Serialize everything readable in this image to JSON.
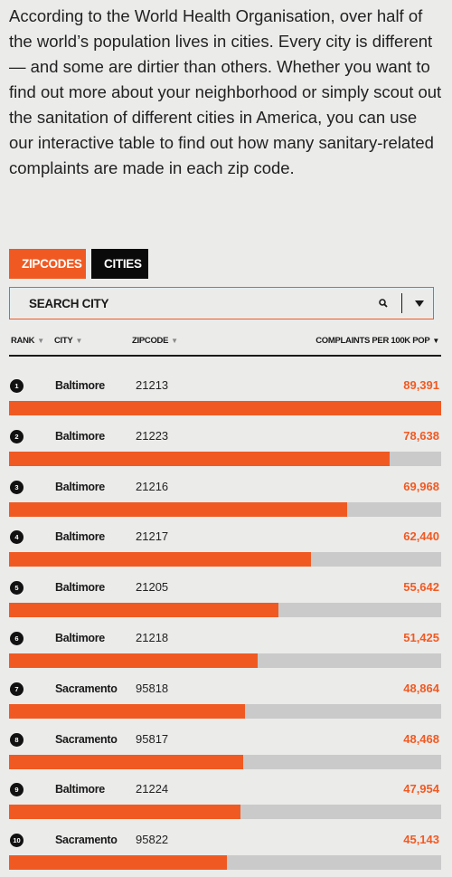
{
  "intro": {
    "text": "According to the World Health Organisation, over half of the world’s population lives in cities. Every city is different — and some are dirtier than others. Whether you want to find out more about your neighborhood or simply scout out the sanitation of different cities in America, you can use our interactive table to find out how many sanitary-related complaints are made in each zip code."
  },
  "tabs": [
    {
      "label": "ZIPCODES",
      "active": true
    },
    {
      "label": "CITIES",
      "active": false
    }
  ],
  "search": {
    "placeholder": "SEARCH CITY",
    "value": ""
  },
  "columns": {
    "rank": "RANK",
    "city": "CITY",
    "zipcode": "ZIPCODE",
    "complaints": "COMPLAINTS PER 100K POP"
  },
  "colors": {
    "accent": "#f05a22",
    "track": "#cacaca",
    "dark": "#0a0a0a"
  },
  "max_value": 89391,
  "rows": [
    {
      "rank": "1",
      "city": "Baltimore",
      "zip": "21213",
      "value_label": "89,391",
      "value": 89391
    },
    {
      "rank": "2",
      "city": "Baltimore",
      "zip": "21223",
      "value_label": "78,638",
      "value": 78638
    },
    {
      "rank": "3",
      "city": "Baltimore",
      "zip": "21216",
      "value_label": "69,968",
      "value": 69968
    },
    {
      "rank": "4",
      "city": "Baltimore",
      "zip": "21217",
      "value_label": "62,440",
      "value": 62440
    },
    {
      "rank": "5",
      "city": "Baltimore",
      "zip": "21205",
      "value_label": "55,642",
      "value": 55642
    },
    {
      "rank": "6",
      "city": "Baltimore",
      "zip": "21218",
      "value_label": "51,425",
      "value": 51425
    },
    {
      "rank": "7",
      "city": "Sacramento",
      "zip": "95818",
      "value_label": "48,864",
      "value": 48864
    },
    {
      "rank": "8",
      "city": "Sacramento",
      "zip": "95817",
      "value_label": "48,468",
      "value": 48468
    },
    {
      "rank": "9",
      "city": "Baltimore",
      "zip": "21224",
      "value_label": "47,954",
      "value": 47954
    },
    {
      "rank": "10",
      "city": "Sacramento",
      "zip": "95822",
      "value_label": "45,143",
      "value": 45143
    }
  ]
}
